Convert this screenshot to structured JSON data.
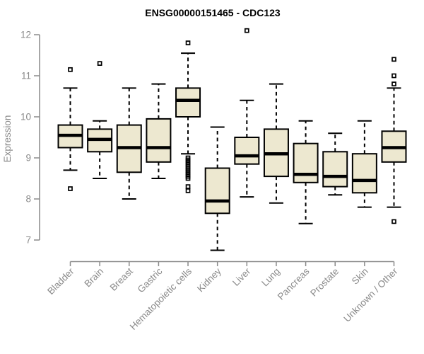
{
  "chart_data": {
    "type": "boxplot",
    "title": "ENSG00000151465 - CDC123",
    "xlabel": "",
    "ylabel": "Expression",
    "ylim": [
      7,
      12
    ],
    "yticks": [
      7,
      8,
      9,
      10,
      11,
      12
    ],
    "grid": false,
    "legend": "none",
    "categories": [
      "Bladder",
      "Brain",
      "Breast",
      "Gastric",
      "Hematopoietic cells",
      "Kidney",
      "Liver",
      "Lung",
      "Pancreas",
      "Prostate",
      "Skin",
      "Unknown / Other"
    ],
    "series": [
      {
        "category": "Bladder",
        "whisker_low": 8.7,
        "q1": 9.25,
        "median": 9.55,
        "q3": 9.8,
        "whisker_high": 10.7,
        "outliers": [
          11.15,
          8.25
        ]
      },
      {
        "category": "Brain",
        "whisker_low": 8.5,
        "q1": 9.15,
        "median": 9.45,
        "q3": 9.7,
        "whisker_high": 9.9,
        "outliers": [
          11.3
        ]
      },
      {
        "category": "Breast",
        "whisker_low": 8.0,
        "q1": 8.65,
        "median": 9.25,
        "q3": 9.8,
        "whisker_high": 10.7,
        "outliers": []
      },
      {
        "category": "Gastric",
        "whisker_low": 8.5,
        "q1": 8.9,
        "median": 9.25,
        "q3": 9.95,
        "whisker_high": 10.8,
        "outliers": []
      },
      {
        "category": "Hematopoietic cells",
        "whisker_low": 9.1,
        "q1": 10.0,
        "median": 10.4,
        "q3": 10.7,
        "whisker_high": 11.55,
        "outliers": [
          11.8,
          9.0,
          8.95,
          8.9,
          8.85,
          8.8,
          8.75,
          8.7,
          8.65,
          8.6,
          8.55,
          8.5,
          8.3,
          8.2
        ]
      },
      {
        "category": "Kidney",
        "whisker_low": 6.75,
        "q1": 7.65,
        "median": 7.95,
        "q3": 8.75,
        "whisker_high": 9.75,
        "outliers": []
      },
      {
        "category": "Liver",
        "whisker_low": 8.05,
        "q1": 8.85,
        "median": 9.05,
        "q3": 9.5,
        "whisker_high": 10.4,
        "outliers": [
          12.1
        ]
      },
      {
        "category": "Lung",
        "whisker_low": 7.9,
        "q1": 8.55,
        "median": 9.1,
        "q3": 9.7,
        "whisker_high": 10.8,
        "outliers": []
      },
      {
        "category": "Pancreas",
        "whisker_low": 7.4,
        "q1": 8.4,
        "median": 8.6,
        "q3": 9.35,
        "whisker_high": 9.9,
        "outliers": []
      },
      {
        "category": "Prostate",
        "whisker_low": 8.1,
        "q1": 8.3,
        "median": 8.55,
        "q3": 9.15,
        "whisker_high": 9.6,
        "outliers": []
      },
      {
        "category": "Skin",
        "whisker_low": 7.8,
        "q1": 8.15,
        "median": 8.45,
        "q3": 9.1,
        "whisker_high": 9.9,
        "outliers": []
      },
      {
        "category": "Unknown / Other",
        "whisker_low": 7.8,
        "q1": 8.9,
        "median": 9.25,
        "q3": 9.65,
        "whisker_high": 10.7,
        "outliers": [
          11.4,
          11.0,
          10.8,
          7.45
        ]
      }
    ],
    "colors": {
      "box_fill": "#EDE8D0",
      "box_border": "#000000",
      "median": "#000000",
      "whisker": "#000000",
      "outlier": "#000000",
      "axis": "#8A8A8A",
      "tick_label": "#8A8A8A",
      "title": "#000000",
      "background": "#FFFFFF"
    }
  }
}
